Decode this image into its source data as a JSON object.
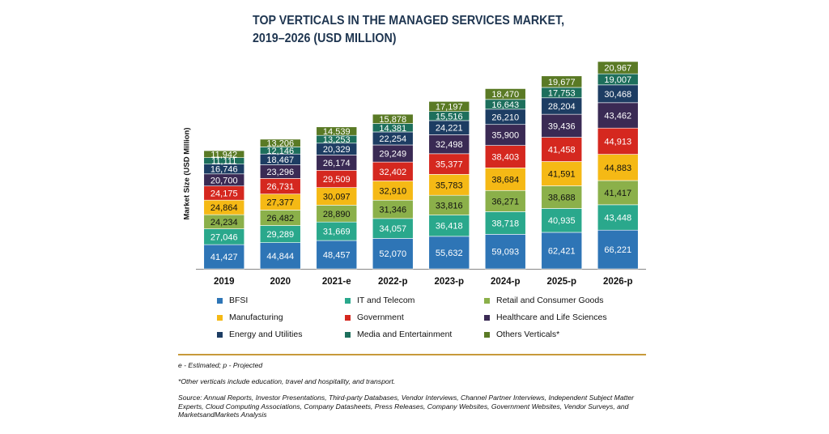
{
  "title_line1": "TOP VERTICALS IN THE MANAGED SERVICES MARKET,",
  "title_line2": "2019–2026 (USD MILLION)",
  "ylabel": "Market Size (USD Million)",
  "footnote_estimated": "e - Estimated; p - Projected",
  "footnote_others": "*Other verticals include education, travel and hospitality, and transport.",
  "source": "Source: Annual Reports, Investor Presentations, Third-party Databases, Vendor Interviews, Channel Partner Interviews, Independent Subject Matter Experts, Cloud Computing Associations, Company Datasheets, Press Releases, Company Websites, Government Websites, Vendor Surveys, and MarketsandMarkets Analysis",
  "chart_data": {
    "type": "bar",
    "stacked": true,
    "title": "TOP VERTICALS IN THE MANAGED SERVICES MARKET, 2019–2026 (USD MILLION)",
    "ylabel": "Market Size (USD Million)",
    "xlabel": "",
    "categories": [
      "2019",
      "2020",
      "2021-e",
      "2022-p",
      "2023-p",
      "2024-p",
      "2025-p",
      "2026-p"
    ],
    "series": [
      {
        "name": "BFSI",
        "color": "#2e75b6",
        "values": [
          41427,
          44844,
          48457,
          52070,
          55632,
          59093,
          62421,
          66221
        ]
      },
      {
        "name": "IT and Telecom",
        "color": "#2aa88c",
        "values": [
          27046,
          29289,
          31669,
          34057,
          36418,
          38718,
          40935,
          43448
        ]
      },
      {
        "name": "Retail and Consumer Goods",
        "color": "#8bb04a",
        "values": [
          24234,
          26482,
          28890,
          31346,
          33816,
          36271,
          38688,
          41417
        ]
      },
      {
        "name": "Manufacturing",
        "color": "#f5b915",
        "values": [
          24864,
          27377,
          30097,
          32910,
          35783,
          38684,
          41591,
          44883
        ]
      },
      {
        "name": "Government",
        "color": "#d5281f",
        "values": [
          24175,
          26731,
          29509,
          32402,
          35377,
          38403,
          41458,
          44913
        ]
      },
      {
        "name": "Healthcare and Life Sciences",
        "color": "#3a2a54",
        "values": [
          20700,
          23296,
          26174,
          29249,
          32498,
          35900,
          39436,
          43462
        ]
      },
      {
        "name": "Energy and Utilities",
        "color": "#1d3d63",
        "values": [
          16746,
          18467,
          20329,
          22254,
          24221,
          26210,
          28204,
          30468
        ]
      },
      {
        "name": "Media and Entertainment",
        "color": "#1d6f5c",
        "values": [
          11111,
          12146,
          13253,
          14381,
          15516,
          16643,
          17753,
          19007
        ]
      },
      {
        "name": "Others Verticals*",
        "color": "#5a7a25",
        "values": [
          11942,
          13206,
          14539,
          15878,
          17197,
          18470,
          19677,
          20967
        ]
      }
    ],
    "legend_position": "bottom",
    "grid": false
  }
}
